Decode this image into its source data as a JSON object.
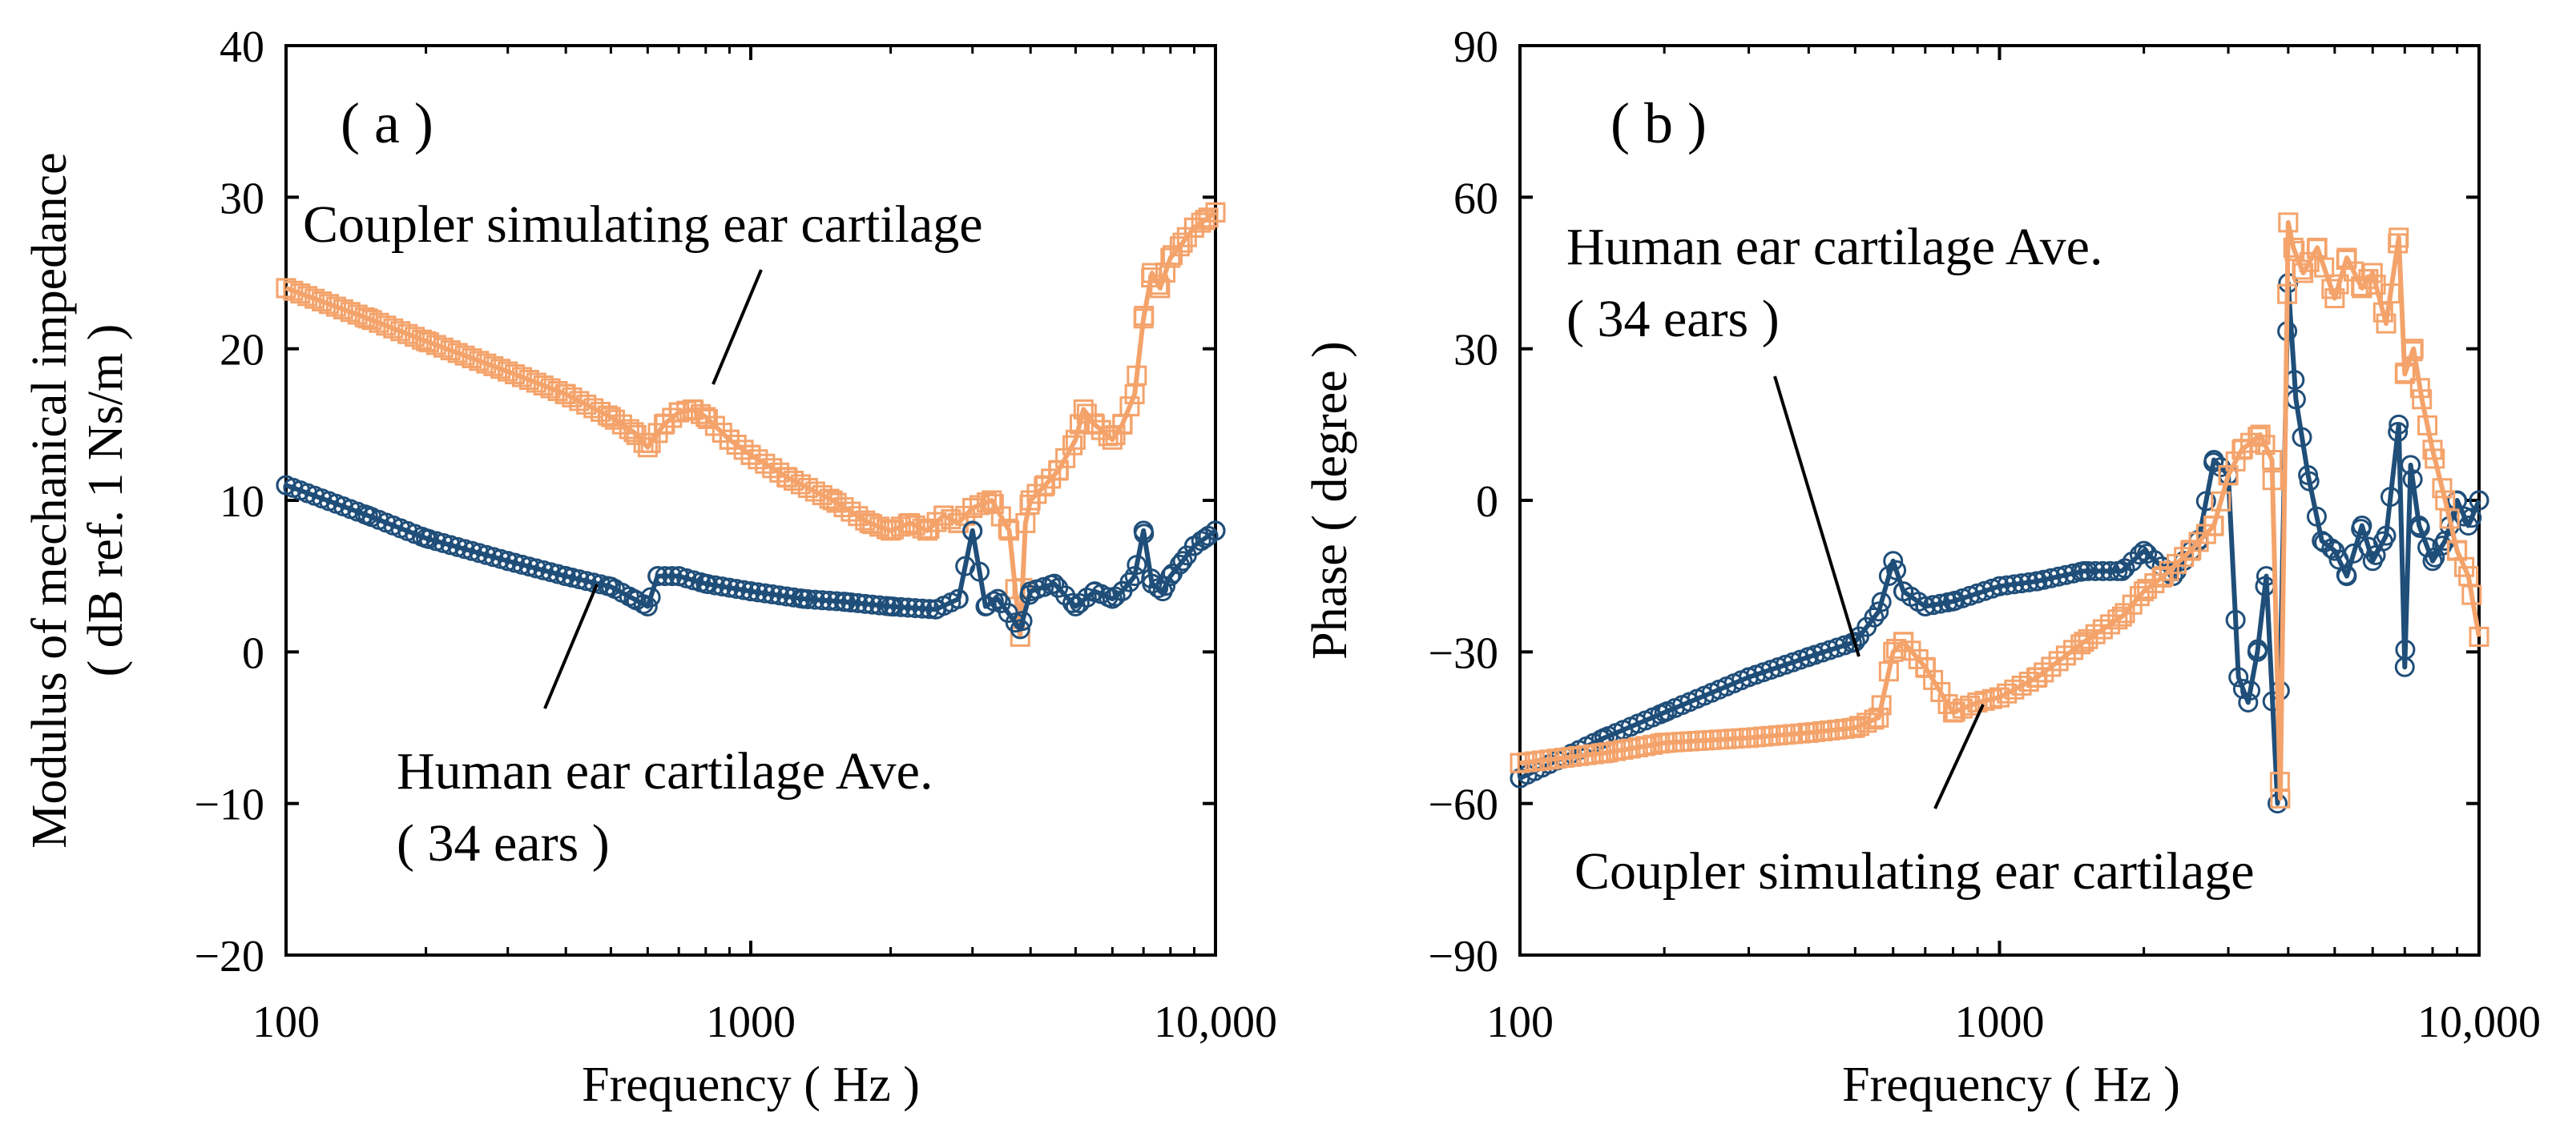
{
  "charts": [
    {
      "panel_label": "( a )",
      "xlabel": "Frequency ( Hz )",
      "ylabel_line1": "Modulus of mechanical impedance",
      "ylabel_line2": "( dB ref. 1 Ns/m )",
      "annotations": {
        "coupler": "Coupler simulating ear cartilage",
        "human_line1": "Human ear cartilage Ave.",
        "human_line2": "( 34 ears )"
      }
    },
    {
      "panel_label": "( b )",
      "xlabel": "Frequency ( Hz )",
      "ylabel_line1": "Phase ( degree )",
      "annotations": {
        "human_line1": "Human ear cartilage Ave.",
        "human_line2": "( 34 ears )",
        "coupler": "Coupler simulating ear cartilage"
      }
    }
  ],
  "colors": {
    "human": "#1f4e79",
    "coupler": "#f4a36b"
  },
  "chart_data": [
    {
      "type": "line",
      "title": "( a )",
      "xscale": "log",
      "xlim": [
        100,
        10000
      ],
      "ylim": [
        -20,
        40
      ],
      "xticks": [
        100,
        1000,
        10000
      ],
      "xtick_labels": [
        "100",
        "1000",
        "10,000"
      ],
      "yticks": [
        -20,
        -10,
        0,
        10,
        20,
        30,
        40
      ],
      "ytick_labels": [
        "−20",
        "−10",
        "0",
        "10",
        "20",
        "30",
        "40"
      ],
      "xlabel": "Frequency ( Hz )",
      "ylabel": "Modulus of mechanical impedance ( dB ref. 1 Ns/m )",
      "series": [
        {
          "name": "Coupler simulating ear cartilage",
          "marker": "square",
          "x": [
            100,
            150,
            200,
            300,
            400,
            500,
            560,
            600,
            650,
            700,
            750,
            800,
            900,
            1000,
            1200,
            1500,
            1800,
            2000,
            2200,
            2400,
            2600,
            2800,
            3000,
            3300,
            3600,
            3800,
            3900,
            4000,
            4300,
            4600,
            5000,
            5200,
            5500,
            6000,
            6300,
            6700,
            7000,
            7300,
            7600,
            8000,
            8500,
            9000,
            9500,
            10000
          ],
          "values": [
            24,
            22,
            20.5,
            18.5,
            17,
            15.5,
            14.5,
            13.5,
            15,
            15.8,
            16,
            15.5,
            14,
            13,
            11.5,
            10,
            8.5,
            8,
            8.5,
            8,
            9,
            8.5,
            9.5,
            10,
            8,
            1,
            8.5,
            10,
            11,
            12,
            14,
            16,
            15,
            14,
            15,
            17,
            22,
            25,
            24,
            26,
            27,
            28,
            28.5,
            29
          ]
        },
        {
          "name": "Human ear cartilage Ave.",
          "marker": "circle",
          "x": [
            100,
            150,
            200,
            300,
            400,
            500,
            560,
            600,
            630,
            700,
            800,
            1000,
            1300,
            1600,
            2000,
            2500,
            2800,
            3000,
            3200,
            3400,
            3800,
            4000,
            4500,
            5000,
            5500,
            6000,
            6300,
            6700,
            7000,
            7300,
            7700,
            8000,
            8500,
            9000,
            9500,
            10000
          ],
          "values": [
            11,
            9,
            7.5,
            6,
            5,
            4.3,
            3.5,
            3,
            5,
            5,
            4.5,
            4,
            3.5,
            3.3,
            3,
            2.8,
            3.5,
            8,
            3,
            3.5,
            1.5,
            4,
            4.5,
            3,
            4,
            3.5,
            4,
            5,
            8,
            4.5,
            4,
            5,
            6,
            7,
            7.5,
            8
          ]
        }
      ]
    },
    {
      "type": "line",
      "title": "( b )",
      "xscale": "log",
      "xlim": [
        100,
        10000
      ],
      "ylim": [
        -90,
        90
      ],
      "xticks": [
        100,
        1000,
        10000
      ],
      "xtick_labels": [
        "100",
        "1000",
        "10,000"
      ],
      "yticks": [
        -90,
        -60,
        -30,
        0,
        30,
        60,
        90
      ],
      "ytick_labels": [
        "−90",
        "−60",
        "−30",
        "0",
        "30",
        "60",
        "90"
      ],
      "xlabel": "Frequency ( Hz )",
      "ylabel": "Phase ( degree )",
      "series": [
        {
          "name": "Human ear cartilage Ave.",
          "marker": "circle",
          "x": [
            100,
            150,
            200,
            300,
            400,
            500,
            560,
            600,
            630,
            700,
            800,
            1000,
            1200,
            1500,
            1800,
            2000,
            2300,
            2600,
            2800,
            3000,
            3150,
            3300,
            3450,
            3600,
            3800,
            4000,
            4150,
            4400,
            4700,
            5000,
            5300,
            5700,
            6000,
            6400,
            6800,
            7000,
            7200,
            7500,
            8000,
            8500,
            9000,
            9500,
            10000
          ],
          "values": [
            -55,
            -47,
            -42,
            -35,
            -31,
            -28,
            -22,
            -12,
            -18,
            -21,
            -20,
            -17,
            -16,
            -14,
            -14,
            -10,
            -15,
            -8,
            8,
            5,
            -35,
            -40,
            -30,
            -15,
            -60,
            43,
            20,
            5,
            -8,
            -10,
            -15,
            -5,
            -12,
            -7,
            15,
            -33,
            7,
            -5,
            -12,
            -8,
            0,
            -5,
            0
          ]
        },
        {
          "name": "Coupler simulating ear cartilage",
          "marker": "square",
          "x": [
            100,
            150,
            200,
            300,
            400,
            500,
            560,
            600,
            630,
            700,
            800,
            900,
            1000,
            1200,
            1500,
            1800,
            2000,
            2200,
            2500,
            2800,
            3000,
            3200,
            3500,
            3700,
            3850,
            4000,
            4100,
            4300,
            4600,
            5000,
            5300,
            5700,
            6000,
            6400,
            6800,
            7000,
            7300,
            7600,
            8000,
            8500,
            9000,
            9500,
            10000
          ],
          "values": [
            -52,
            -50,
            -48,
            -47,
            -46,
            -45,
            -43,
            -30,
            -28,
            -33,
            -42,
            -40,
            -39,
            -35,
            -28,
            -23,
            -18,
            -15,
            -10,
            -5,
            5,
            10,
            13,
            8,
            -59,
            55,
            50,
            45,
            50,
            40,
            48,
            42,
            45,
            35,
            52,
            25,
            30,
            20,
            10,
            0,
            -10,
            -15,
            -27
          ]
        }
      ]
    }
  ]
}
